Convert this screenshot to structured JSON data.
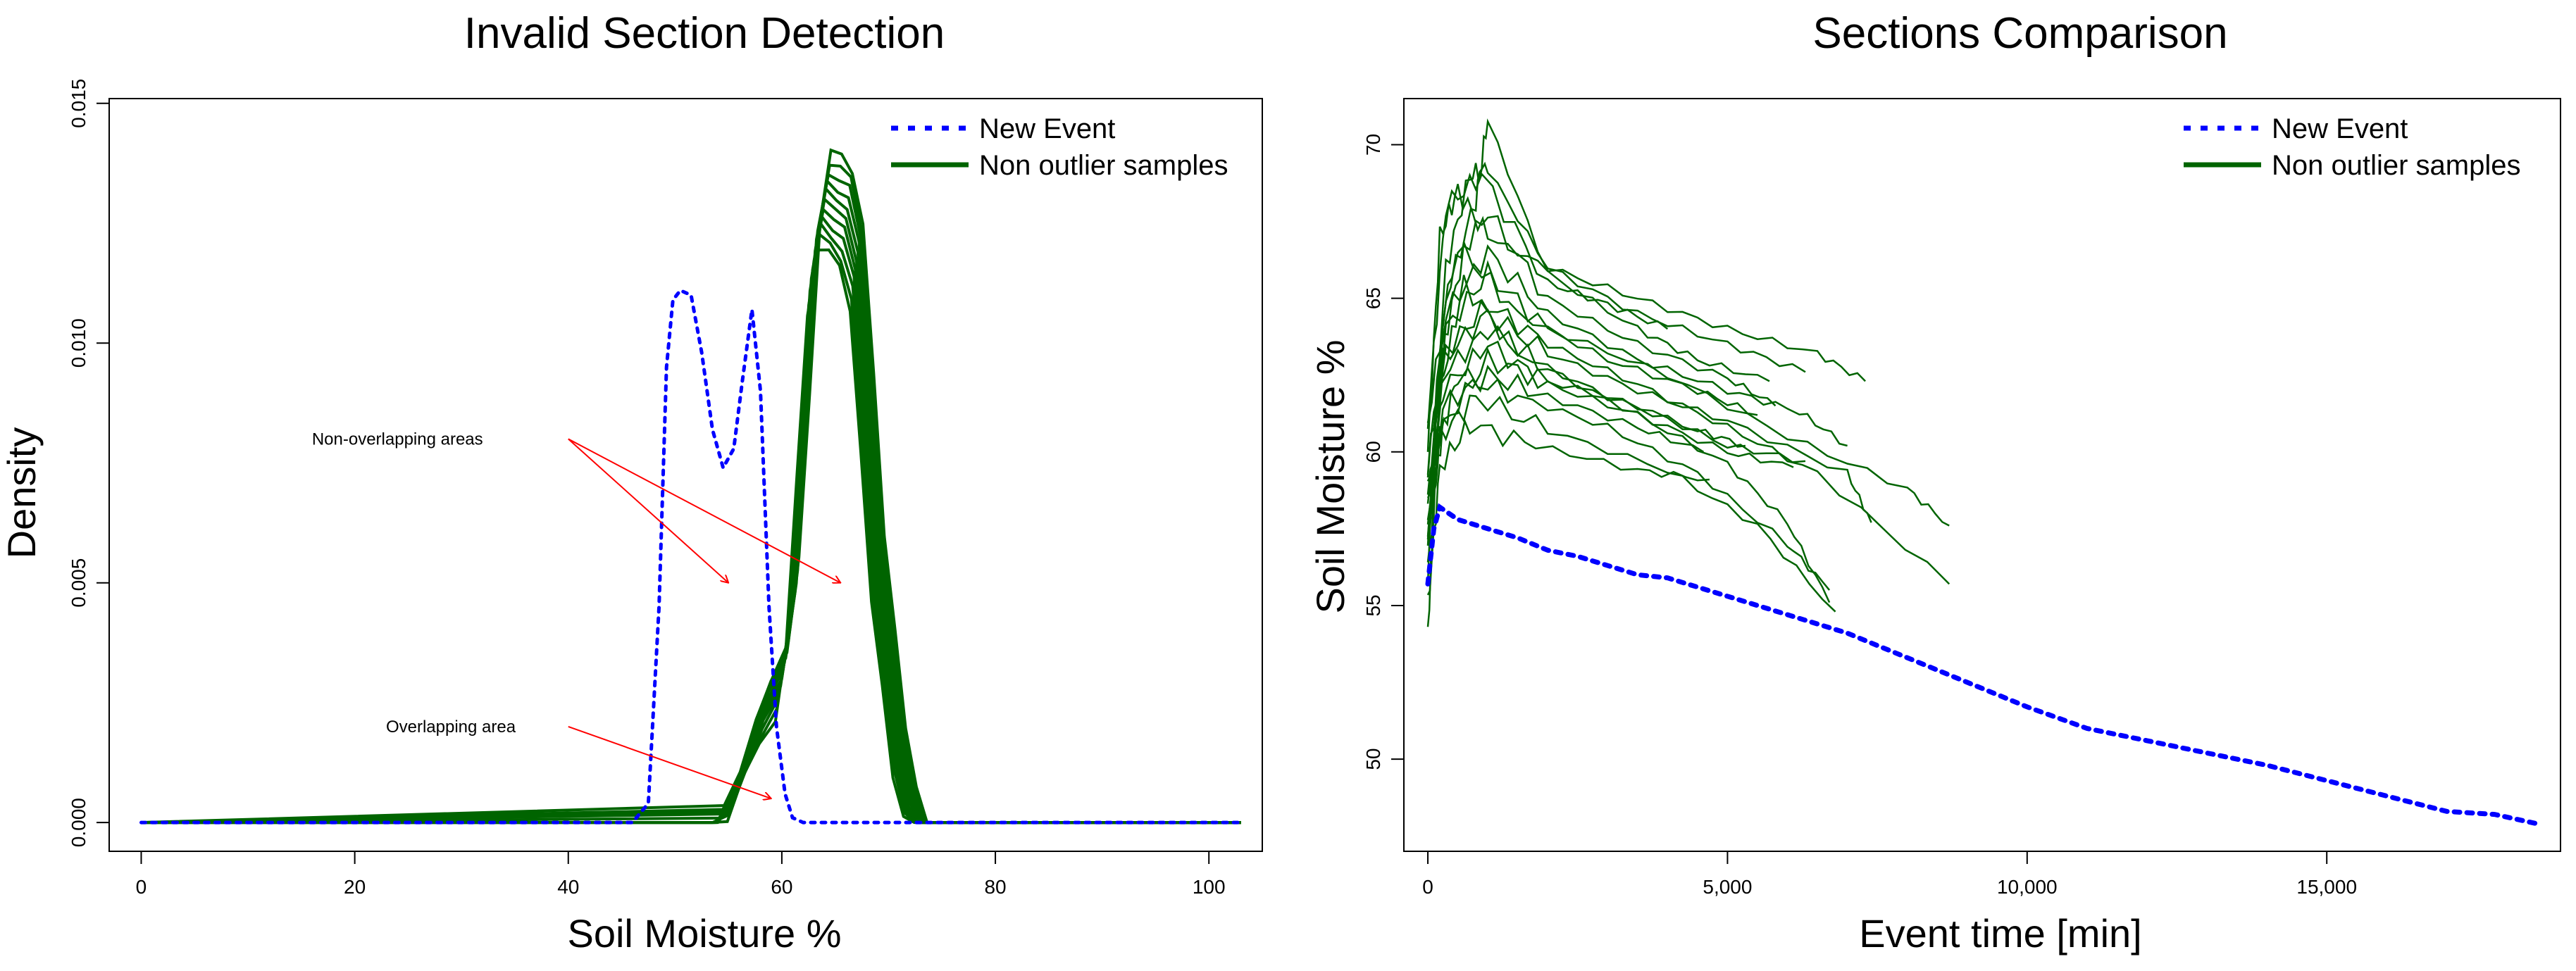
{
  "chart_data": [
    {
      "type": "line",
      "title": "Invalid Section Detection",
      "xlabel": "Soil Moisture %",
      "ylabel": "Density",
      "xlim": [
        -3,
        105
      ],
      "ylim": [
        -0.0006,
        0.0151
      ],
      "xticks": [
        0,
        20,
        40,
        60,
        80,
        100
      ],
      "yticks": [
        0.0,
        0.005,
        0.01,
        0.015
      ],
      "ytick_labels": [
        "0.000",
        "0.005",
        "0.010",
        "0.015"
      ],
      "legend": {
        "position": "top-right",
        "entries": [
          {
            "label": "New Event",
            "style": "dotted",
            "color": "#0000ff"
          },
          {
            "label": "Non outlier samples",
            "style": "solid",
            "color": "#006400"
          }
        ]
      },
      "series": [
        {
          "name": "New Event",
          "style": "dotted",
          "color": "#0000ff",
          "x": [
            0,
            46,
            47.5,
            48.5,
            49.2,
            49.8,
            50.5,
            51.5,
            52.5,
            53.5,
            54.5,
            55.5,
            56.3,
            57.2,
            58.0,
            58.8,
            59.5,
            60.3,
            61.0,
            62.0,
            63,
            103
          ],
          "y": [
            0,
            0,
            0.0004,
            0.0045,
            0.0095,
            0.0109,
            0.0111,
            0.011,
            0.0098,
            0.0082,
            0.0074,
            0.0078,
            0.0092,
            0.0107,
            0.009,
            0.0045,
            0.002,
            0.0006,
            0.0001,
            0,
            0,
            0
          ]
        },
        {
          "name": "Non outlier samples",
          "style": "solid",
          "color": "#006400",
          "x": [
            0,
            54,
            55.5,
            57,
            58.5,
            60,
            61,
            62,
            63,
            64,
            65,
            66,
            67,
            68,
            69,
            70,
            71,
            72,
            73,
            103
          ],
          "y": [
            0,
            0,
            0.0005,
            0.0015,
            0.0024,
            0.003,
            0.0045,
            0.008,
            0.0117,
            0.013,
            0.0128,
            0.0126,
            0.0117,
            0.0085,
            0.0052,
            0.0035,
            0.0015,
            0.0004,
            0,
            0
          ],
          "band": [
            0,
            0.0004,
            0.0005,
            0.0006,
            0.0007,
            0.0008,
            0.0009,
            0.0009,
            0.001,
            0.001,
            0.001,
            0.001,
            0.0009,
            0.0008,
            0.0007,
            0.0006,
            0.0005,
            0.0003,
            0,
            0
          ]
        }
      ],
      "annotations": [
        {
          "text": "Non-overlapping areas",
          "label_at": [
            24,
            0.008
          ],
          "tail": [
            40,
            0.008
          ],
          "heads": [
            [
              55,
              0.005
            ],
            [
              65.5,
              0.005
            ]
          ],
          "color": "#ff0000"
        },
        {
          "text": "Overlapping area",
          "label_at": [
            29,
            0.002
          ],
          "tail": [
            40,
            0.002
          ],
          "heads": [
            [
              59,
              0.0005
            ]
          ],
          "color": "#ff0000"
        }
      ]
    },
    {
      "type": "line",
      "title": "Sections Comparison",
      "xlabel": "Event time [min]",
      "ylabel": "Soil Moisture %",
      "xlim": [
        -400,
        18900
      ],
      "ylim": [
        47,
        71.5
      ],
      "xticks": [
        0,
        5000,
        10000,
        15000
      ],
      "xtick_labels": [
        "0",
        "5,000",
        "10,000",
        "15,000"
      ],
      "yticks": [
        50,
        55,
        60,
        65,
        70
      ],
      "legend": {
        "position": "top-right",
        "entries": [
          {
            "label": "New Event",
            "style": "dotted",
            "color": "#0000ff"
          },
          {
            "label": "Non outlier samples",
            "style": "solid",
            "color": "#006400"
          }
        ]
      },
      "series": [
        {
          "name": "New Event",
          "style": "dotted",
          "color": "#0000ff",
          "x": [
            0,
            100,
            200,
            500,
            1000,
            1500,
            2000,
            2500,
            3000,
            3500,
            4000,
            4500,
            5000,
            5500,
            6000,
            6500,
            7000,
            7500,
            8000,
            9000,
            10000,
            11000,
            12000,
            13000,
            14000,
            15000,
            16000,
            17000,
            17800,
            18500
          ],
          "y": [
            55.7,
            57.5,
            58.2,
            57.8,
            57.5,
            57.2,
            56.8,
            56.6,
            56.3,
            56.0,
            55.9,
            55.6,
            55.3,
            55.0,
            54.7,
            54.4,
            54.1,
            53.7,
            53.3,
            52.5,
            51.7,
            51.0,
            50.6,
            50.2,
            49.8,
            49.3,
            48.8,
            48.3,
            48.2,
            47.9
          ]
        },
        {
          "name": "Non outlier samples",
          "style": "solid",
          "color": "#006400",
          "samples": [
            {
              "x": [
                0,
                200,
                500,
                1000,
                2000,
                3500,
                5000,
                6500,
                7300
              ],
              "y": [
                60,
                67,
                68.5,
                67,
                66,
                65,
                64,
                63.2,
                62.3
              ]
            },
            {
              "x": [
                0,
                300,
                700,
                1000,
                2000,
                3500,
                5000,
                6300
              ],
              "y": [
                58,
                66,
                69,
                69.2,
                66,
                64.5,
                63.5,
                62.6
              ]
            },
            {
              "x": [
                0,
                300,
                800,
                1000,
                2000,
                3500,
                4500,
                5700
              ],
              "y": [
                57.5,
                65,
                68.2,
                70.8,
                65.8,
                64,
                63,
                62.3
              ]
            },
            {
              "x": [
                0,
                400,
                1000,
                2000,
                3500,
                5000,
                5800
              ],
              "y": [
                61,
                66,
                67.8,
                65,
                63.5,
                62.4,
                61.5
              ]
            },
            {
              "x": [
                0,
                300,
                1000,
                2000,
                3500,
                5000,
                6200,
                7000
              ],
              "y": [
                59.5,
                64.5,
                66.5,
                64.5,
                63,
                62,
                61.3,
                60.2
              ]
            },
            {
              "x": [
                0,
                300,
                1000,
                2000,
                4000,
                6000,
                8000,
                8700
              ],
              "y": [
                59.5,
                64,
                65.8,
                64,
                62.5,
                60.5,
                58.8,
                57.6
              ]
            },
            {
              "x": [
                0,
                250,
                1000,
                2000,
                3500,
                5000,
                7000,
                7400
              ],
              "y": [
                58.5,
                63,
                64.5,
                63.2,
                62,
                61,
                59.3,
                57.7
              ]
            },
            {
              "x": [
                0,
                300,
                1000,
                2000,
                3500,
                5000,
                6500,
                8700
              ],
              "y": [
                58.7,
                63.3,
                64.8,
                63.5,
                62.2,
                60.8,
                59.3,
                55.7
              ]
            },
            {
              "x": [
                0,
                250,
                1000,
                2000,
                3500,
                5000,
                6000,
                6700
              ],
              "y": [
                58.3,
                62.5,
                64,
                62.7,
                61.2,
                59.6,
                57.7,
                55.1
              ]
            },
            {
              "x": [
                0,
                250,
                1000,
                2000,
                3500,
                5000,
                6100
              ],
              "y": [
                57.8,
                62,
                63.5,
                62.2,
                61.2,
                60,
                59.5
              ]
            },
            {
              "x": [
                0,
                250,
                1000,
                2000,
                3500,
                4600
              ],
              "y": [
                57.5,
                61.5,
                62.5,
                61.8,
                60.8,
                60
              ]
            },
            {
              "x": [
                0,
                250,
                1000,
                2000,
                3500,
                5000,
                6300
              ],
              "y": [
                57.4,
                60.8,
                63,
                62.3,
                61.5,
                60.2,
                59.7
              ]
            },
            {
              "x": [
                0,
                200,
                800,
                2000,
                4000,
                5500,
                6800
              ],
              "y": [
                56.2,
                60.5,
                61.8,
                60.7,
                59.4,
                57.6,
                54.8
              ]
            },
            {
              "x": [
                0,
                200,
                700,
                1800,
                3500,
                4700
              ],
              "y": [
                55,
                59.5,
                60.9,
                60.2,
                59.4,
                59.1
              ]
            },
            {
              "x": [
                0,
                150,
                500,
                1500,
                3000,
                4500,
                6000,
                6700
              ],
              "y": [
                54.2,
                60,
                62.5,
                61.8,
                60.8,
                59.3,
                57,
                55.5
              ]
            },
            {
              "x": [
                0,
                300,
                900,
                2000,
                3000,
                4000
              ],
              "y": [
                61,
                68,
                69,
                65.5,
                64.8,
                64
              ]
            },
            {
              "x": [
                0,
                200,
                600,
                1500,
                3000,
                4500,
                5500
              ],
              "y": [
                56,
                63,
                66.5,
                64.5,
                63,
                62,
                61.2
              ]
            },
            {
              "x": [
                0,
                200,
                600,
                1500,
                3000,
                4500,
                5300
              ],
              "y": [
                57,
                62,
                65.5,
                63.2,
                61.8,
                60.7,
                60.2
              ]
            }
          ]
        }
      ]
    }
  ]
}
